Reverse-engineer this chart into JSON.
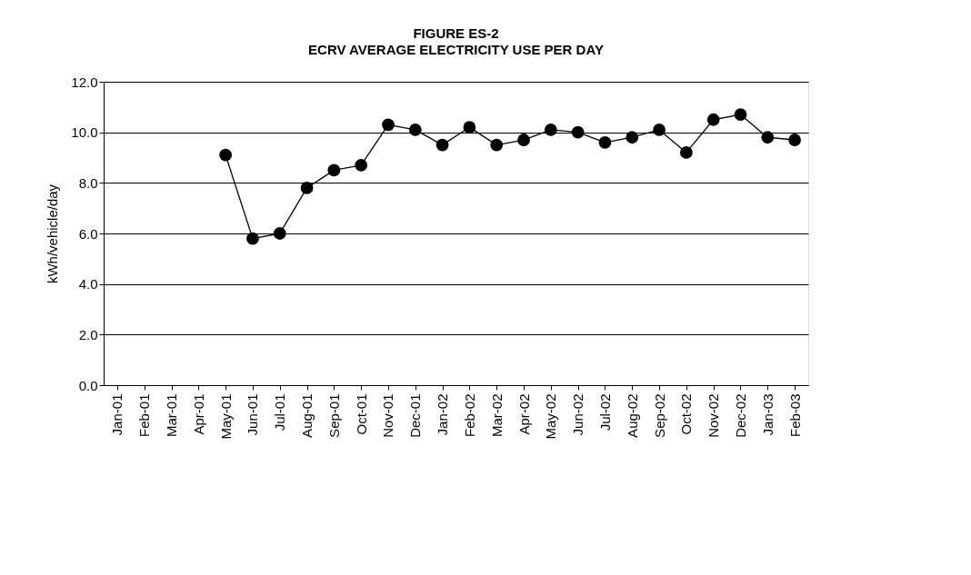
{
  "chart_data": {
    "type": "line",
    "title": "FIGURE ES-2",
    "subtitle": "ECRV AVERAGE ELECTRICITY USE PER DAY",
    "ylabel": "kWh/vehicle/day",
    "categories": [
      "Jan-01",
      "Feb-01",
      "Mar-01",
      "Apr-01",
      "May-01",
      "Jun-01",
      "Jul-01",
      "Aug-01",
      "Sep-01",
      "Oct-01",
      "Nov-01",
      "Dec-01",
      "Jan-02",
      "Feb-02",
      "Mar-02",
      "Apr-02",
      "May-02",
      "Jun-02",
      "Jul-02",
      "Aug-02",
      "Sep-02",
      "Oct-02",
      "Nov-02",
      "Dec-02",
      "Jan-03",
      "Feb-03"
    ],
    "series": [
      {
        "color": "#000000",
        "values": [
          null,
          null,
          null,
          null,
          9.1,
          5.8,
          6.0,
          7.8,
          8.5,
          8.7,
          10.3,
          10.1,
          9.5,
          10.2,
          9.5,
          9.7,
          10.1,
          10.0,
          9.6,
          9.8,
          10.1,
          9.2,
          10.5,
          10.7,
          9.8,
          9.7
        ]
      }
    ],
    "ylim": [
      0,
      12
    ],
    "yticks": [
      {
        "value": 0,
        "label": "0.0"
      },
      {
        "value": 2,
        "label": "2.0"
      },
      {
        "value": 4,
        "label": "4.0"
      },
      {
        "value": 6,
        "label": "6.0"
      },
      {
        "value": 8,
        "label": "8.0"
      },
      {
        "value": 10,
        "label": "10.0"
      },
      {
        "value": 12,
        "label": "12.0"
      }
    ],
    "grid": "y",
    "marker": "circle",
    "line_style": "solid",
    "legend": false
  }
}
